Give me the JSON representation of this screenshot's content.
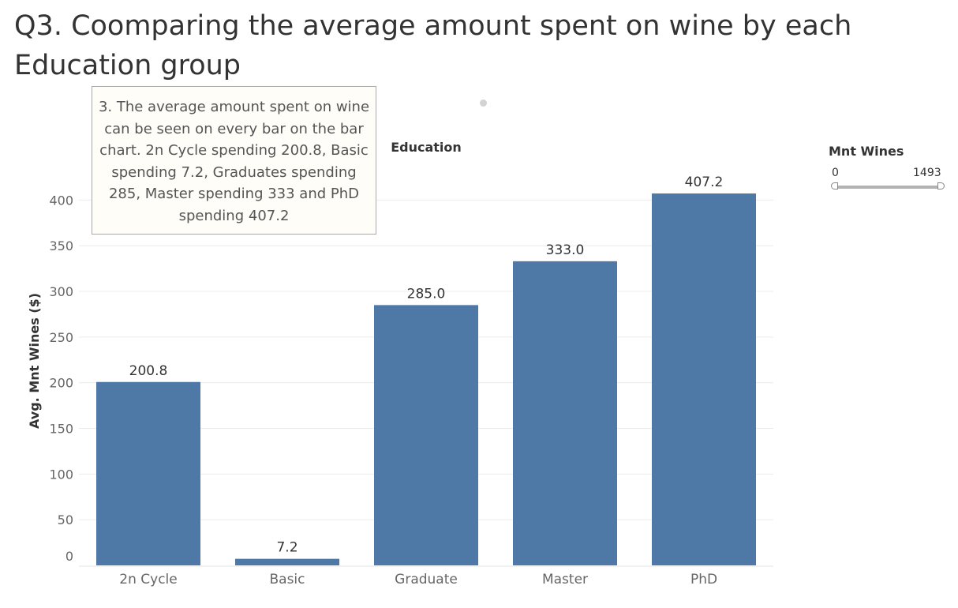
{
  "page": {
    "title": "Q3. Coomparing the average amount spent on wine by each Education group"
  },
  "annotation": {
    "text": "3. The average amount spent on wine can  be seen on every bar on the bar chart. 2n Cycle spending 200.8, Basic spending 7.2, Graduates spending 285, Master spending 333 and PhD spending 407.2"
  },
  "legend": {
    "title": "Mnt Wines",
    "min_label": "0",
    "max_label": "1493",
    "range": [
      0,
      1493
    ]
  },
  "chart_data": {
    "type": "bar",
    "column_header": "Education",
    "ylabel": "Avg. Mnt Wines ($)",
    "categories": [
      "2n Cycle",
      "Basic",
      "Graduate",
      "Master",
      "PhD"
    ],
    "values": [
      200.8,
      7.2,
      285.0,
      333.0,
      407.2
    ],
    "value_labels": [
      "200.8",
      "7.2",
      "285.0",
      "333.0",
      "407.2"
    ],
    "yticks": [
      0,
      50,
      100,
      150,
      200,
      250,
      300,
      350,
      400
    ],
    "ylim": [
      0,
      420
    ],
    "bar_color": "#4e79a7",
    "grid": true
  }
}
